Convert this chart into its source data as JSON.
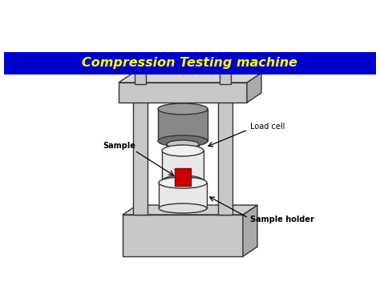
{
  "title": "Compression Testing machine",
  "title_color": "#FFFF00",
  "title_bg_color": "#0000CC",
  "bg_color": "#FFFFFF",
  "machine_color": "#C8C8C8",
  "machine_edge": "#333333",
  "dark_gray": "#888888",
  "light_gray": "#E8E8E8",
  "load_cell_text": "Load cell",
  "sample_text": "Sample",
  "sample_holder_text": "Sample holder",
  "red_sample_color": "#CC0000",
  "red_sample_edge": "#800000"
}
